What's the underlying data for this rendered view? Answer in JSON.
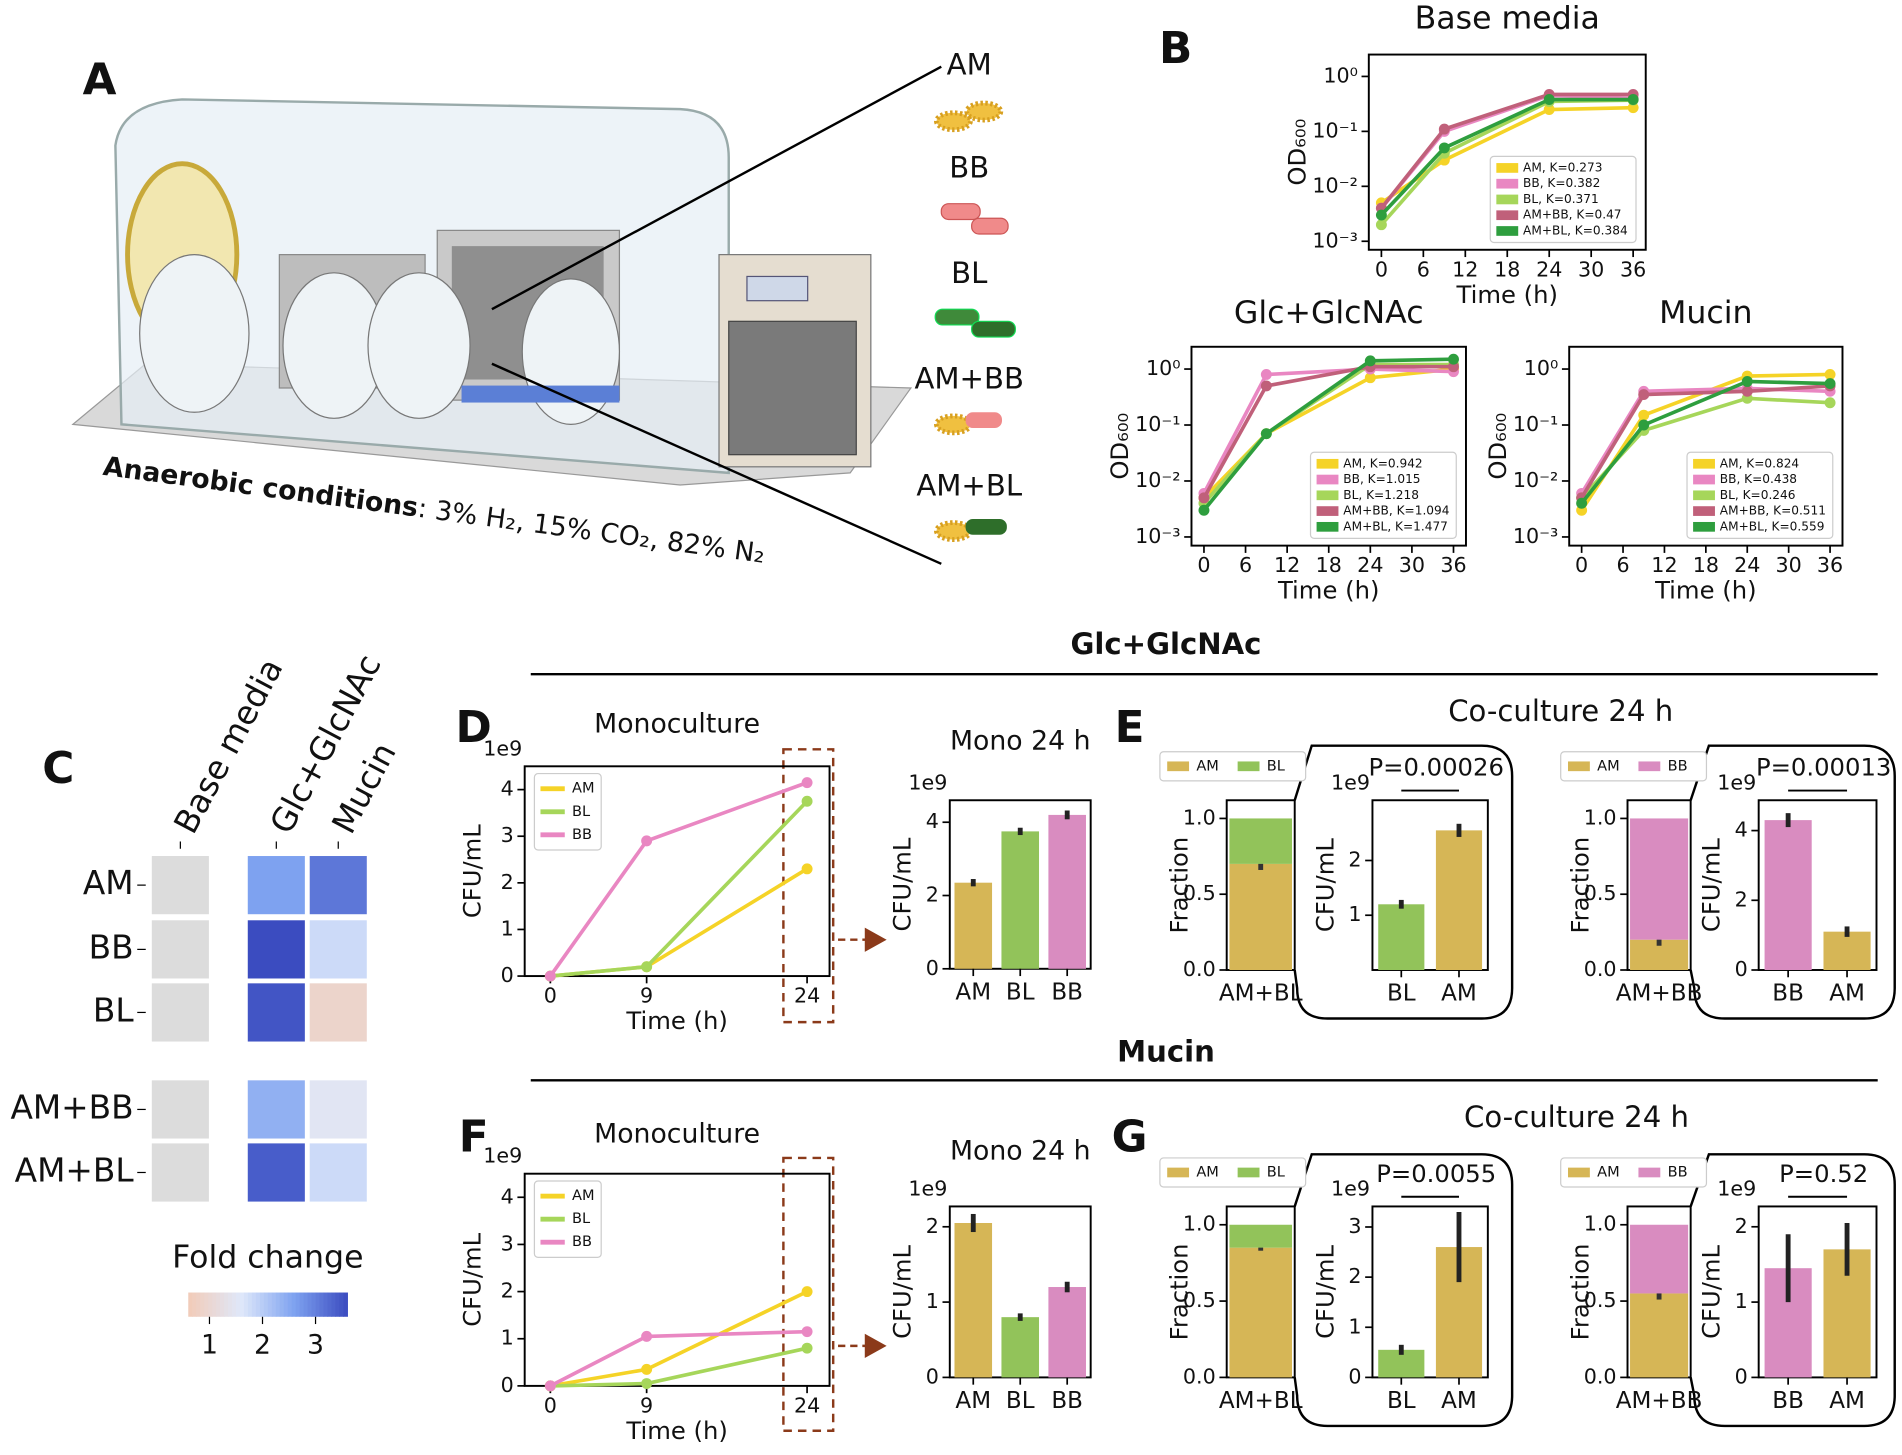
{
  "panel_labels": [
    "A",
    "B",
    "C",
    "D",
    "E",
    "F",
    "G"
  ],
  "headers": [
    "Glc+GlcNAc",
    "Mucin",
    "Co-culture 24 h",
    "Co-culture 24 h"
  ],
  "illustration": {
    "caption_bold": "Anaerobic conditions",
    "caption": ": 3% H₂, 15% CO₂, 82% N₂",
    "labels": [
      "AM",
      "BB",
      "BL",
      "AM+BB",
      "AM+BL"
    ]
  },
  "chart_data": [
    {
      "type": "line",
      "title": "Base media",
      "x": [
        0,
        9,
        24,
        36
      ],
      "xlim": [
        -1.8,
        37.8
      ],
      "xticks": [
        0,
        6,
        12,
        18,
        24,
        30,
        36
      ],
      "ylim": [
        0.0007,
        2.5
      ],
      "log_y": true,
      "yticks": [
        {
          "value": 0.001,
          "label": "10⁻³"
        },
        {
          "value": 0.01,
          "label": "10⁻²"
        },
        {
          "value": 0.1,
          "label": "10⁻¹"
        },
        {
          "value": 1,
          "label": "10⁰"
        }
      ],
      "xlabel": "Time (h)",
      "ylabel": "OD₆₀₀",
      "legend": "lower right",
      "series": [
        {
          "name": "AM, K=0.273",
          "color": "#f5d327",
          "values": [
            0.005,
            0.03,
            0.25,
            0.27
          ]
        },
        {
          "name": "BB, K=0.382",
          "color": "#e987c2",
          "values": [
            0.004,
            0.1,
            0.45,
            0.4
          ]
        },
        {
          "name": "BL, K=0.371",
          "color": "#a6d65a",
          "values": [
            0.002,
            0.04,
            0.35,
            0.37
          ]
        },
        {
          "name": "AM+BB, K=0.47",
          "color": "#c0607a",
          "values": [
            0.004,
            0.11,
            0.47,
            0.47
          ]
        },
        {
          "name": "AM+BL, K=0.384",
          "color": "#2e9e3e",
          "values": [
            0.003,
            0.05,
            0.38,
            0.38
          ]
        }
      ]
    },
    {
      "type": "line",
      "title": "Glc+GlcNAc",
      "x": [
        0,
        9,
        24,
        36
      ],
      "xlim": [
        -1.8,
        37.8
      ],
      "xticks": [
        0,
        6,
        12,
        18,
        24,
        30,
        36
      ],
      "ylim": [
        0.0007,
        2.5
      ],
      "log_y": true,
      "yticks": [
        {
          "value": 0.001,
          "label": "10⁻³"
        },
        {
          "value": 0.01,
          "label": "10⁻²"
        },
        {
          "value": 0.1,
          "label": "10⁻¹"
        },
        {
          "value": 1,
          "label": "10⁰"
        }
      ],
      "xlabel": "Time (h)",
      "ylabel": "OD₆₀₀",
      "legend": "lower right",
      "series": [
        {
          "name": "AM, K=0.942",
          "color": "#f5d327",
          "values": [
            0.005,
            0.07,
            0.7,
            1.0
          ]
        },
        {
          "name": "BB, K=1.015",
          "color": "#e987c2",
          "values": [
            0.006,
            0.8,
            1.0,
            0.9
          ]
        },
        {
          "name": "BL, K=1.218",
          "color": "#a6d65a",
          "values": [
            0.004,
            0.07,
            1.2,
            1.2
          ]
        },
        {
          "name": "AM+BB, K=1.094",
          "color": "#c0607a",
          "values": [
            0.005,
            0.5,
            1.1,
            1.1
          ]
        },
        {
          "name": "AM+BL, K=1.477",
          "color": "#2e9e3e",
          "values": [
            0.003,
            0.07,
            1.4,
            1.5
          ]
        }
      ]
    },
    {
      "type": "line",
      "title": "Mucin",
      "x": [
        0,
        9,
        24,
        36
      ],
      "xlim": [
        -1.8,
        37.8
      ],
      "xticks": [
        0,
        6,
        12,
        18,
        24,
        30,
        36
      ],
      "ylim": [
        0.0007,
        2.5
      ],
      "log_y": true,
      "yticks": [
        {
          "value": 0.001,
          "label": "10⁻³"
        },
        {
          "value": 0.01,
          "label": "10⁻²"
        },
        {
          "value": 0.1,
          "label": "10⁻¹"
        },
        {
          "value": 1,
          "label": "10⁰"
        }
      ],
      "xlabel": "Time (h)",
      "ylabel": "OD₆₀₀",
      "legend": "lower right",
      "series": [
        {
          "name": "AM, K=0.824",
          "color": "#f5d327",
          "values": [
            0.003,
            0.15,
            0.75,
            0.8
          ]
        },
        {
          "name": "BB, K=0.438",
          "color": "#e987c2",
          "values": [
            0.006,
            0.4,
            0.45,
            0.4
          ]
        },
        {
          "name": "BL, K=0.246",
          "color": "#a6d65a",
          "values": [
            0.005,
            0.08,
            0.3,
            0.25
          ]
        },
        {
          "name": "AM+BB, K=0.511",
          "color": "#c0607a",
          "values": [
            0.005,
            0.35,
            0.4,
            0.5
          ]
        },
        {
          "name": "AM+BL, K=0.559",
          "color": "#2e9e3e",
          "values": [
            0.004,
            0.1,
            0.6,
            0.55
          ]
        }
      ]
    },
    {
      "type": "heatmap",
      "rows": [
        "AM",
        "BB",
        "BL",
        "AM+BB",
        "AM+BL"
      ],
      "columns": [
        "Base media",
        "Glc+GlcNAc",
        "Mucin"
      ],
      "values": [
        [
          null,
          2.6,
          3.1
        ],
        [
          null,
          3.6,
          1.8
        ],
        [
          null,
          3.5,
          0.9
        ],
        [
          null,
          2.4,
          1.5
        ],
        [
          null,
          3.4,
          1.8
        ]
      ],
      "clim": [
        0.6,
        3.6
      ],
      "colormap": [
        "#f2cbb7",
        "#dfe8fa",
        "#7ea2f0",
        "#3b4cc0"
      ],
      "na_color": "#dcdcdc",
      "colorbar_label": "Fold change",
      "colorbar_ticks": [
        1,
        2,
        3
      ]
    },
    {
      "type": "line",
      "title": "Monoculture",
      "x": [
        0,
        9,
        24
      ],
      "xlim": [
        -2.4,
        26.1
      ],
      "xticks": [
        0,
        9,
        24
      ],
      "ylim": [
        0,
        4.5
      ],
      "yticks": [
        0,
        1,
        2,
        3,
        4
      ],
      "y_offset_label": "1e9",
      "xlabel": "Time (h)",
      "ylabel": "CFU/mL",
      "legend": "upper left",
      "series": [
        {
          "name": "AM",
          "color": "#f5d327",
          "values": [
            0,
            0.2,
            2.3
          ]
        },
        {
          "name": "BL",
          "color": "#a6d65a",
          "values": [
            0,
            0.2,
            3.75
          ]
        },
        {
          "name": "BB",
          "color": "#e987c2",
          "values": [
            0,
            2.9,
            4.15
          ]
        }
      ]
    },
    {
      "type": "bar",
      "title": "Mono 24 h",
      "categories": [
        "AM",
        "BL",
        "BB"
      ],
      "values": [
        2.35,
        3.75,
        4.2
      ],
      "errors": [
        0.1,
        0.1,
        0.12
      ],
      "colors": [
        "#d6b656",
        "#92c35a",
        "#d98cc0"
      ],
      "ylim": [
        0,
        4.6
      ],
      "yticks": [
        0,
        2,
        4
      ],
      "y_offset_label": "1e9",
      "ylabel": "CFU/mL"
    },
    {
      "type": "stacked_bar",
      "categories": [
        "AM+BL"
      ],
      "ylim": [
        0,
        1.12
      ],
      "yticks": [
        {
          "value": 0,
          "label": "0.0"
        },
        0.5,
        {
          "value": 1,
          "label": "1.0"
        }
      ],
      "ylabel": "Fraction",
      "legend": "above",
      "series": [
        {
          "name": "AM",
          "color": "#d6b656",
          "values": [
            0.7
          ],
          "errors": [
            0.04
          ]
        },
        {
          "name": "BL",
          "color": "#92c35a",
          "values": [
            0.3
          ]
        }
      ]
    },
    {
      "type": "bar",
      "categories": [
        "BL",
        "AM"
      ],
      "values": [
        1.2,
        2.55
      ],
      "errors": [
        0.08,
        0.12
      ],
      "colors": [
        "#92c35a",
        "#d6b656"
      ],
      "ylim": [
        0,
        3.1
      ],
      "yticks": [
        1,
        2
      ],
      "y_offset_label": "1e9",
      "ylabel": "CFU/mL",
      "annotation": "P=0.00026"
    },
    {
      "type": "stacked_bar",
      "categories": [
        "AM+BB"
      ],
      "ylim": [
        0,
        1.12
      ],
      "yticks": [
        {
          "value": 0,
          "label": "0.0"
        },
        0.5,
        {
          "value": 1,
          "label": "1.0"
        }
      ],
      "ylabel": "Fraction",
      "legend": "above",
      "series": [
        {
          "name": "AM",
          "color": "#d6b656",
          "values": [
            0.2
          ],
          "errors": [
            0.04
          ]
        },
        {
          "name": "BB",
          "color": "#d98cc0",
          "values": [
            0.8
          ]
        }
      ]
    },
    {
      "type": "bar",
      "categories": [
        "BB",
        "AM"
      ],
      "values": [
        4.3,
        1.1
      ],
      "errors": [
        0.2,
        0.15
      ],
      "colors": [
        "#d98cc0",
        "#d6b656"
      ],
      "ylim": [
        0,
        4.87
      ],
      "yticks": [
        0,
        2,
        4
      ],
      "y_offset_label": "1e9",
      "ylabel": "CFU/mL",
      "annotation": "P=0.00013"
    },
    {
      "type": "line",
      "title": "Monoculture",
      "x": [
        0,
        9,
        24
      ],
      "xlim": [
        -2.4,
        26.1
      ],
      "xticks": [
        0,
        9,
        24
      ],
      "ylim": [
        0,
        4.5
      ],
      "yticks": [
        0,
        1,
        2,
        3,
        4
      ],
      "y_offset_label": "1e9",
      "xlabel": "Time (h)",
      "ylabel": "CFU/mL",
      "legend": "upper left",
      "series": [
        {
          "name": "AM",
          "color": "#f5d327",
          "values": [
            0,
            0.35,
            2.0
          ]
        },
        {
          "name": "BL",
          "color": "#a6d65a",
          "values": [
            0,
            0.05,
            0.8
          ]
        },
        {
          "name": "BB",
          "color": "#e987c2",
          "values": [
            0,
            1.05,
            1.15
          ]
        }
      ]
    },
    {
      "type": "bar",
      "title": "Mono 24 h",
      "categories": [
        "AM",
        "BL",
        "BB"
      ],
      "values": [
        2.05,
        0.8,
        1.2
      ],
      "errors": [
        0.12,
        0.05,
        0.07
      ],
      "colors": [
        "#d6b656",
        "#92c35a",
        "#d98cc0"
      ],
      "ylim": [
        0,
        2.27
      ],
      "yticks": [
        0,
        1,
        2
      ],
      "y_offset_label": "1e9",
      "ylabel": "CFU/mL"
    },
    {
      "type": "stacked_bar",
      "categories": [
        "AM+BL"
      ],
      "ylim": [
        0,
        1.12
      ],
      "yticks": [
        {
          "value": 0,
          "label": "0.0"
        },
        0.5,
        {
          "value": 1,
          "label": "1.0"
        }
      ],
      "ylabel": "Fraction",
      "legend": "above",
      "series": [
        {
          "name": "AM",
          "color": "#d6b656",
          "values": [
            0.85
          ],
          "errors": [
            0.02
          ]
        },
        {
          "name": "BL",
          "color": "#92c35a",
          "values": [
            0.15
          ]
        }
      ]
    },
    {
      "type": "bar",
      "categories": [
        "BL",
        "AM"
      ],
      "values": [
        0.55,
        2.6
      ],
      "errors": [
        0.1,
        0.7
      ],
      "colors": [
        "#92c35a",
        "#d6b656"
      ],
      "ylim": [
        0,
        3.41
      ],
      "yticks": [
        0,
        1,
        2,
        3
      ],
      "y_offset_label": "1e9",
      "ylabel": "CFU/mL",
      "annotation": "P=0.0055"
    },
    {
      "type": "stacked_bar",
      "categories": [
        "AM+BB"
      ],
      "ylim": [
        0,
        1.12
      ],
      "yticks": [
        {
          "value": 0,
          "label": "0.0"
        },
        0.5,
        {
          "value": 1,
          "label": "1.0"
        }
      ],
      "ylabel": "Fraction",
      "legend": "above",
      "series": [
        {
          "name": "AM",
          "color": "#d6b656",
          "values": [
            0.55
          ],
          "errors": [
            0.04
          ]
        },
        {
          "name": "BB",
          "color": "#d98cc0",
          "values": [
            0.45
          ]
        }
      ]
    },
    {
      "type": "bar",
      "categories": [
        "BB",
        "AM"
      ],
      "values": [
        1.45,
        1.7
      ],
      "errors": [
        0.45,
        0.35
      ],
      "colors": [
        "#d98cc0",
        "#d6b656"
      ],
      "ylim": [
        0,
        2.27
      ],
      "yticks": [
        0,
        1,
        2
      ],
      "y_offset_label": "1e9",
      "ylabel": "CFU/mL",
      "annotation": "P=0.52"
    }
  ]
}
